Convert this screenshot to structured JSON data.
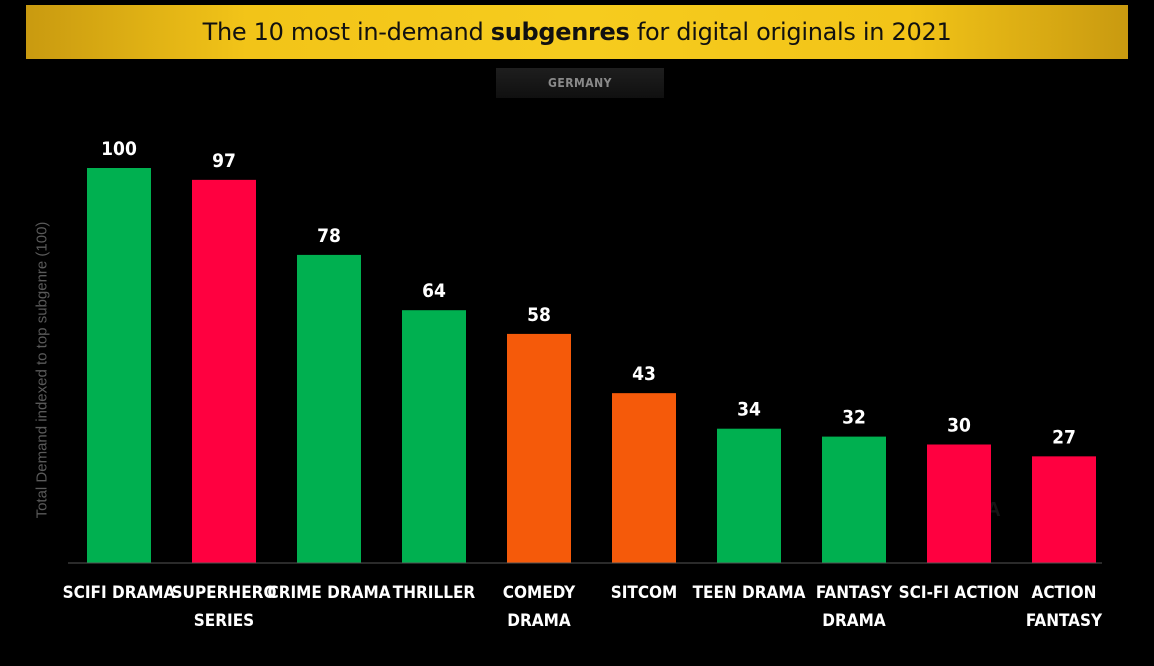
{
  "header": {
    "title_before": "The 10 most in-demand ",
    "title_bold": "subgenres",
    "title_after": " for digital originals in 2021",
    "region": "GERMANY"
  },
  "colors": {
    "green": "#00b050",
    "red": "#ff0040",
    "orange": "#f55a0a",
    "banner": "#f6cc1e"
  },
  "chart_data": {
    "type": "bar",
    "title": "The 10 most in-demand subgenres for digital originals in 2021",
    "subtitle": "GERMANY",
    "ylabel": "Total Demand indexed to top subgenre (100)",
    "xlabel": "",
    "ylim": [
      0,
      100
    ],
    "grid": false,
    "categories": [
      [
        "SCIFI DRAMA"
      ],
      [
        "SUPERHERO",
        "SERIES"
      ],
      [
        "CRIME DRAMA"
      ],
      [
        "THRILLER"
      ],
      [
        "COMEDY",
        "DRAMA"
      ],
      [
        "SITCOM"
      ],
      [
        "TEEN DRAMA"
      ],
      [
        "FANTASY",
        "DRAMA"
      ],
      [
        "SCI-FI ACTION"
      ],
      [
        "ACTION",
        "FANTASY"
      ]
    ],
    "values": [
      100,
      97,
      78,
      64,
      58,
      43,
      34,
      32,
      30,
      27
    ],
    "bar_colors": [
      "#00b050",
      "#ff0040",
      "#00b050",
      "#00b050",
      "#f55a0a",
      "#f55a0a",
      "#00b050",
      "#00b050",
      "#ff0040",
      "#ff0040"
    ]
  }
}
